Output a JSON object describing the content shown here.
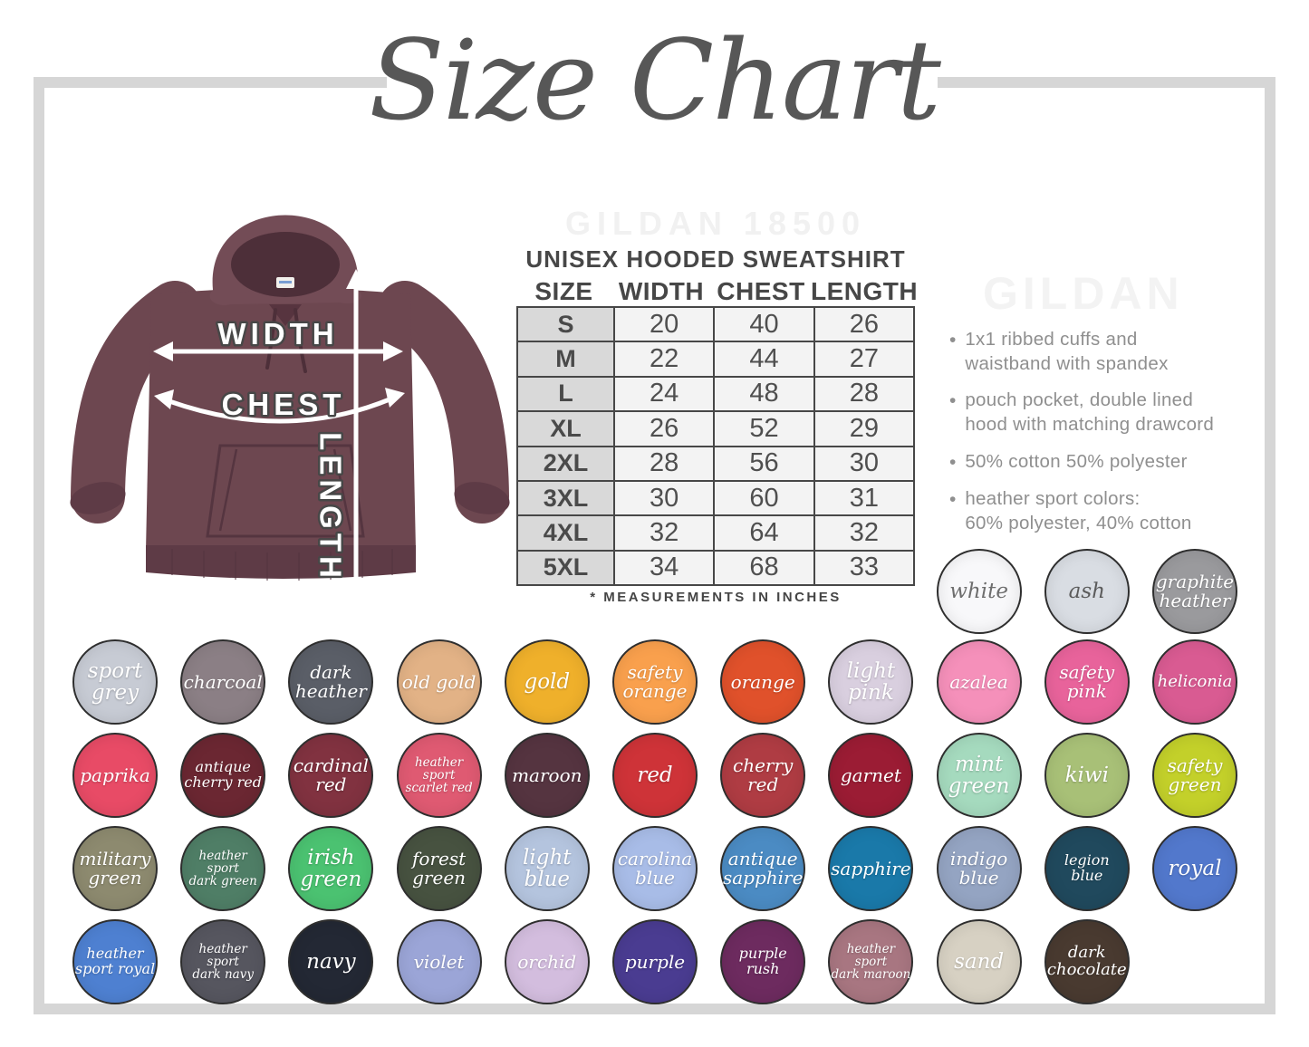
{
  "title": "Size Chart",
  "watermarks": {
    "top": "GILDAN 18500",
    "side": "GILDAN"
  },
  "product": {
    "heading": "UNISEX HOODED SWEATSHIRT",
    "footnote": "* MEASUREMENTS IN INCHES"
  },
  "diagram_labels": {
    "width": "WIDTH",
    "chest": "CHEST",
    "length": "LENGTH"
  },
  "chart_data": {
    "type": "table",
    "title": "UNISEX HOODED SWEATSHIRT",
    "columns": [
      "SIZE",
      "WIDTH",
      "CHEST",
      "LENGTH"
    ],
    "rows": [
      [
        "S",
        "20",
        "40",
        "26"
      ],
      [
        "M",
        "22",
        "44",
        "27"
      ],
      [
        "L",
        "24",
        "48",
        "28"
      ],
      [
        "XL",
        "26",
        "52",
        "29"
      ],
      [
        "2XL",
        "28",
        "56",
        "30"
      ],
      [
        "3XL",
        "30",
        "60",
        "31"
      ],
      [
        "4XL",
        "32",
        "64",
        "32"
      ],
      [
        "5XL",
        "34",
        "68",
        "33"
      ]
    ],
    "units": "inches"
  },
  "features": [
    [
      "1x1 ribbed cuffs and",
      "waistband with spandex"
    ],
    [
      "pouch pocket, double lined",
      "hood with matching drawcord"
    ],
    [
      "50% cotton 50% polyester"
    ],
    [
      "heather sport colors:",
      "60% polyester, 40% cotton"
    ]
  ],
  "swatches": {
    "intro_row": [
      {
        "name": "white",
        "lines": [
          "white"
        ],
        "bg": "#f8f8fa",
        "fg": "#6e6e6e",
        "col": 8
      },
      {
        "name": "ash",
        "lines": [
          "ash"
        ],
        "bg": "#d9dde3",
        "fg": "#5b5b5b",
        "col": 9
      },
      {
        "name": "graphite heather",
        "lines": [
          "graphite",
          "heather"
        ],
        "bg": "#9a9a9d",
        "fg": "#ffffff",
        "col": 10
      }
    ],
    "rows": [
      [
        {
          "name": "sport grey",
          "lines": [
            "sport",
            "grey"
          ],
          "bg": "#c7cbd4",
          "fg": "#ffffff"
        },
        {
          "name": "charcoal",
          "lines": [
            "charcoal"
          ],
          "bg": "#8b7f85",
          "fg": "#ffffff"
        },
        {
          "name": "dark heather",
          "lines": [
            "dark",
            "heather"
          ],
          "bg": "#5a5e67",
          "fg": "#ffffff"
        },
        {
          "name": "old gold",
          "lines": [
            "old gold"
          ],
          "bg": "#e2b286",
          "fg": "#ffffff"
        },
        {
          "name": "gold",
          "lines": [
            "gold"
          ],
          "bg": "#efb02b",
          "fg": "#ffffff"
        },
        {
          "name": "safety orange",
          "lines": [
            "safety",
            "orange"
          ],
          "bg": "#f9a04d",
          "fg": "#ffffff"
        },
        {
          "name": "orange",
          "lines": [
            "orange"
          ],
          "bg": "#e0512b",
          "fg": "#ffffff"
        },
        {
          "name": "light pink",
          "lines": [
            "light",
            "pink"
          ],
          "bg": "#d9cfdf",
          "fg": "#ffffff"
        },
        {
          "name": "azalea",
          "lines": [
            "azalea"
          ],
          "bg": "#f590ba",
          "fg": "#ffffff"
        },
        {
          "name": "safety pink",
          "lines": [
            "safety",
            "pink"
          ],
          "bg": "#e8639b",
          "fg": "#ffffff"
        },
        {
          "name": "heliconia",
          "lines": [
            "heliconia"
          ],
          "bg": "#d95b92",
          "fg": "#ffffff"
        }
      ],
      [
        {
          "name": "paprika",
          "lines": [
            "paprika"
          ],
          "bg": "#e84b66",
          "fg": "#ffffff"
        },
        {
          "name": "antique cherry red",
          "lines": [
            "antique",
            "cherry red"
          ],
          "bg": "#6b2732",
          "fg": "#ffffff"
        },
        {
          "name": "cardinal red",
          "lines": [
            "cardinal",
            "red"
          ],
          "bg": "#813240",
          "fg": "#ffffff"
        },
        {
          "name": "heather sport scarlet red",
          "lines": [
            "heather sport",
            "scarlet red"
          ],
          "bg": "#df5a72",
          "fg": "#ffffff"
        },
        {
          "name": "maroon",
          "lines": [
            "maroon"
          ],
          "bg": "#553440",
          "fg": "#ffffff"
        },
        {
          "name": "red",
          "lines": [
            "red"
          ],
          "bg": "#ce3338",
          "fg": "#ffffff"
        },
        {
          "name": "cherry red",
          "lines": [
            "cherry",
            "red"
          ],
          "bg": "#af3c43",
          "fg": "#ffffff"
        },
        {
          "name": "garnet",
          "lines": [
            "garnet"
          ],
          "bg": "#9b1c34",
          "fg": "#ffffff"
        },
        {
          "name": "mint green",
          "lines": [
            "mint",
            "green"
          ],
          "bg": "#a5dabe",
          "fg": "#ffffff"
        },
        {
          "name": "kiwi",
          "lines": [
            "kiwi"
          ],
          "bg": "#a8c077",
          "fg": "#ffffff"
        },
        {
          "name": "safety green",
          "lines": [
            "safety",
            "green"
          ],
          "bg": "#c3d02a",
          "fg": "#ffffff"
        }
      ],
      [
        {
          "name": "military green",
          "lines": [
            "military",
            "green"
          ],
          "bg": "#8d8a6f",
          "fg": "#ffffff"
        },
        {
          "name": "heather sport dark green",
          "lines": [
            "heather sport",
            "dark green"
          ],
          "bg": "#4f7e66",
          "fg": "#ffffff"
        },
        {
          "name": "irish green",
          "lines": [
            "irish",
            "green"
          ],
          "bg": "#4bc271",
          "fg": "#ffffff"
        },
        {
          "name": "forest green",
          "lines": [
            "forest",
            "green"
          ],
          "bg": "#475240",
          "fg": "#ffffff"
        },
        {
          "name": "light blue",
          "lines": [
            "light",
            "blue"
          ],
          "bg": "#b4c4de",
          "fg": "#ffffff"
        },
        {
          "name": "carolina blue",
          "lines": [
            "carolina",
            "blue"
          ],
          "bg": "#a8bce7",
          "fg": "#ffffff"
        },
        {
          "name": "antique sapphire",
          "lines": [
            "antique",
            "sapphire"
          ],
          "bg": "#4b8bc3",
          "fg": "#ffffff"
        },
        {
          "name": "sapphire",
          "lines": [
            "sapphire"
          ],
          "bg": "#1a79a9",
          "fg": "#ffffff"
        },
        {
          "name": "indigo blue",
          "lines": [
            "indigo",
            "blue"
          ],
          "bg": "#94a4c2",
          "fg": "#ffffff"
        },
        {
          "name": "legion blue",
          "lines": [
            "legion blue"
          ],
          "bg": "#20495d",
          "fg": "#ffffff"
        },
        {
          "name": "royal",
          "lines": [
            "royal"
          ],
          "bg": "#5278cc",
          "fg": "#ffffff"
        }
      ],
      [
        {
          "name": "heather sport royal",
          "lines": [
            "heather",
            "sport royal"
          ],
          "bg": "#4e80d1",
          "fg": "#ffffff"
        },
        {
          "name": "heather sport dark navy",
          "lines": [
            "heather sport",
            "dark navy"
          ],
          "bg": "#56565f",
          "fg": "#ffffff"
        },
        {
          "name": "navy",
          "lines": [
            "navy"
          ],
          "bg": "#232834",
          "fg": "#ffffff"
        },
        {
          "name": "violet",
          "lines": [
            "violet"
          ],
          "bg": "#9ba5d7",
          "fg": "#ffffff"
        },
        {
          "name": "orchid",
          "lines": [
            "orchid"
          ],
          "bg": "#d3bdde",
          "fg": "#ffffff"
        },
        {
          "name": "purple",
          "lines": [
            "purple"
          ],
          "bg": "#4a3c91",
          "fg": "#ffffff"
        },
        {
          "name": "purple rush",
          "lines": [
            "purple rush"
          ],
          "bg": "#6d2b5f",
          "fg": "#ffffff"
        },
        {
          "name": "heather sport dark maroon",
          "lines": [
            "heather sport",
            "dark maroon"
          ],
          "bg": "#a87681",
          "fg": "#ffffff"
        },
        {
          "name": "sand",
          "lines": [
            "sand"
          ],
          "bg": "#d7d1c3",
          "fg": "#ffffff"
        },
        {
          "name": "dark chocolate",
          "lines": [
            "dark",
            "chocolate"
          ],
          "bg": "#493a30",
          "fg": "#ffffff"
        }
      ]
    ]
  }
}
